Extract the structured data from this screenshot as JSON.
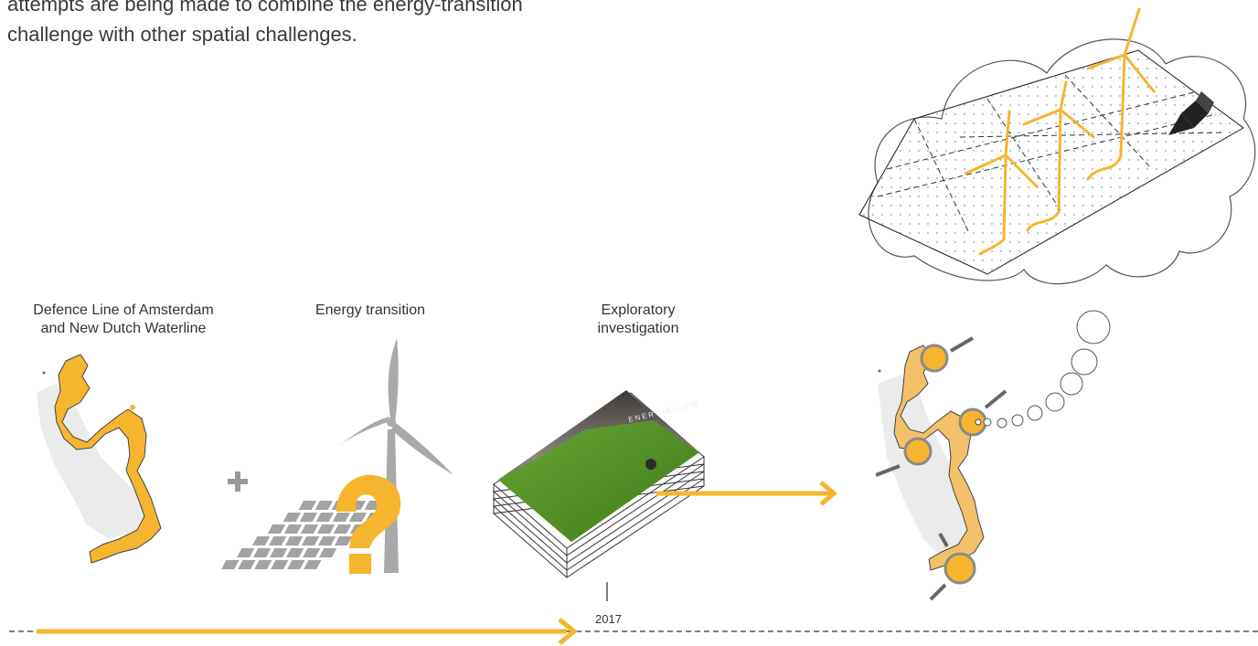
{
  "intro": {
    "line1": "attempts are being made to combine the energy-transition",
    "line2": "challenge with other spatial challenges."
  },
  "stages": [
    {
      "label_line1": "Defence Line of Amsterdam",
      "label_line2": "and New Dutch Waterline"
    },
    {
      "label_line1": "Energy transition",
      "label_line2": ""
    },
    {
      "label_line1": "Exploratory",
      "label_line2": "investigation"
    }
  ],
  "book": {
    "cover_title": "ENERGIELINIE"
  },
  "timeline": {
    "year": "2017"
  },
  "colors": {
    "accent": "#f5b52e",
    "gray": "#a6a6a6",
    "dark": "#555555"
  },
  "icons": [
    "plus-icon",
    "question-mark-icon",
    "wind-turbine-icon",
    "solar-panel-icon",
    "pencil-icon",
    "thought-cloud-icon",
    "arrow-right-icon"
  ]
}
